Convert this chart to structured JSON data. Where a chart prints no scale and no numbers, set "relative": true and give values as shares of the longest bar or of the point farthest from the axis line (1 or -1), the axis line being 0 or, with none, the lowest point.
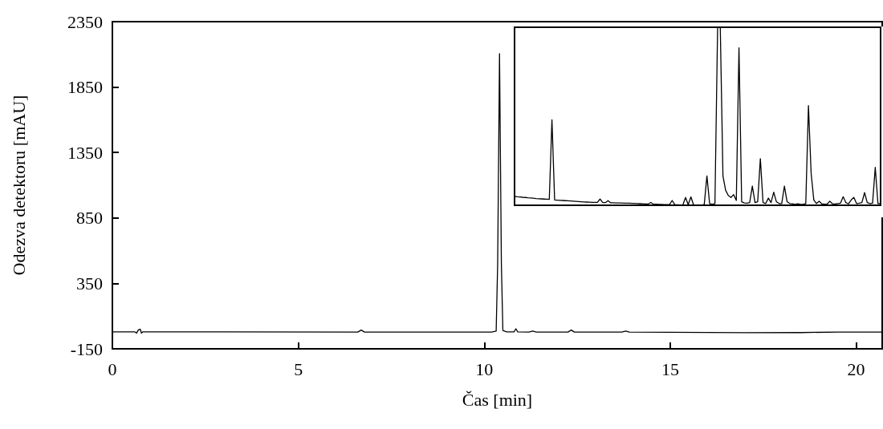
{
  "chart_data": [
    {
      "type": "line",
      "xlabel": "Čas [min]",
      "ylabel": "Odezva detektoru [mAU]",
      "xlim": [
        0,
        20.7
      ],
      "xticks": [
        0,
        5,
        10,
        15,
        20
      ],
      "ylim": [
        -150,
        2350
      ],
      "yticks": [
        -150,
        350,
        850,
        1350,
        1850,
        2350
      ],
      "color": "#000000",
      "x": [
        0,
        0.6,
        0.65,
        0.7,
        0.75,
        0.78,
        0.82,
        3,
        6.6,
        6.69,
        6.78,
        10.2,
        10.32,
        10.36,
        10.41,
        10.46,
        10.5,
        10.6,
        10.8,
        10.85,
        10.9,
        11.2,
        11.3,
        11.4,
        12.25,
        12.34,
        12.42,
        13.7,
        13.8,
        13.9,
        16,
        17,
        18.5,
        19.5,
        20.7
      ],
      "values": [
        -20,
        -20,
        -30,
        -5,
        0,
        -30,
        -20,
        -20,
        -22,
        -7,
        -22,
        -22,
        -15,
        500,
        2105,
        500,
        -10,
        -20,
        -20,
        3,
        -20,
        -22,
        -15,
        -22,
        -22,
        -7,
        -22,
        -22,
        -15,
        -22,
        -25,
        -27,
        -26,
        -22,
        -22
      ]
    },
    {
      "type": "line",
      "relative": true,
      "color": "#000000",
      "categories": [
        null,
        null,
        null,
        null,
        null,
        null,
        null,
        null,
        null,
        null,
        null,
        null,
        null,
        null,
        null,
        null,
        null,
        null,
        null,
        null,
        null,
        null,
        null,
        null,
        null,
        null,
        null,
        null,
        null,
        null,
        null,
        null,
        null,
        null,
        null,
        null,
        null,
        null,
        null,
        null,
        null,
        null,
        null,
        null,
        null,
        null,
        null,
        null,
        null,
        null,
        null,
        null,
        null,
        null,
        null,
        null,
        null,
        null,
        null,
        null,
        null,
        null,
        null,
        null,
        null,
        null,
        null,
        null,
        null,
        null,
        null,
        null,
        null,
        null,
        null,
        null,
        null,
        null,
        null,
        null,
        null,
        null,
        null,
        null,
        null,
        null,
        null,
        null,
        null,
        null,
        null,
        null,
        null,
        null,
        null,
        null,
        null,
        null,
        null,
        null,
        null,
        null,
        null,
        null,
        null,
        null,
        null,
        null,
        null,
        null,
        null,
        null,
        null,
        null,
        null,
        null,
        null,
        null,
        null,
        null,
        null,
        null,
        null,
        null,
        null,
        null,
        null,
        null,
        null,
        null,
        null,
        null,
        null,
        null,
        null,
        null,
        null,
        null
      ],
      "values": [
        0.05,
        0.048,
        0.047,
        0.045,
        0.044,
        0.042,
        0.041,
        0.04,
        0.038,
        0.037,
        0.036,
        0.035,
        0.034,
        0.033,
        0.48,
        0.03,
        0.029,
        0.028,
        0.027,
        0.026,
        0.025,
        0.024,
        0.023,
        0.022,
        0.021,
        0.02,
        0.019,
        0.018,
        0.017,
        0.016,
        0.016,
        0.016,
        0.035,
        0.015,
        0.015,
        0.026,
        0.014,
        0.014,
        0.013,
        0.013,
        0.013,
        0.012,
        0.012,
        0.012,
        0.011,
        0.011,
        0.01,
        0.009,
        0.008,
        0.007,
        0.007,
        0.016,
        0.006,
        0.006,
        0.005,
        0.005,
        0.004,
        0.004,
        0.004,
        0.027,
        0.003,
        0.003,
        0.002,
        0.002,
        0.044,
        0.003,
        0.047,
        0.002,
        0.001,
        0,
        0,
        0.005,
        0.165,
        0.01,
        0.005,
        0.01,
        1,
        1,
        0.165,
        0.084,
        0.055,
        0.044,
        0.06,
        0.027,
        0.884,
        0.02,
        0.013,
        0.012,
        0.015,
        0.108,
        0.015,
        0.02,
        0.262,
        0.015,
        0.01,
        0.04,
        0.015,
        0.074,
        0.02,
        0.01,
        0.01,
        0.108,
        0.02,
        0.01,
        0.008,
        0.005,
        0.008,
        0.005,
        0.005,
        0.01,
        0.56,
        0.18,
        0.03,
        0.01,
        0.023,
        0.008,
        0.006,
        0.007,
        0.023,
        0.008,
        0.007,
        0.01,
        0.012,
        0.048,
        0.015,
        0.008,
        0.03,
        0.044,
        0.01,
        0.012,
        0.015,
        0.071,
        0.015,
        0.01,
        0.012,
        0.213,
        0.01,
        0.01
      ]
    }
  ]
}
